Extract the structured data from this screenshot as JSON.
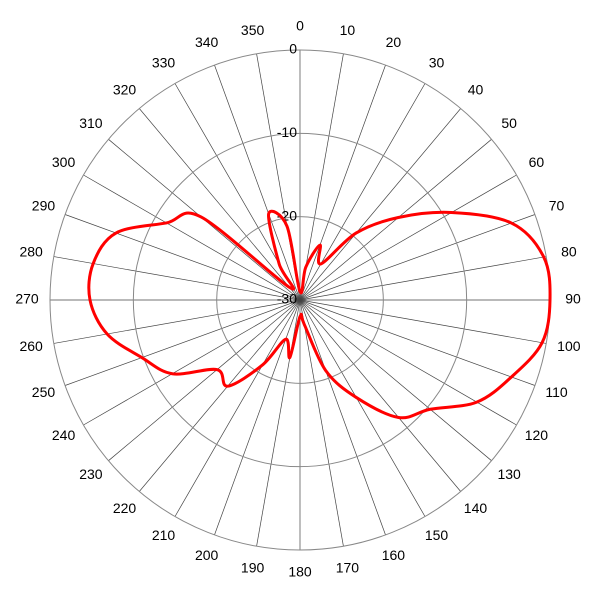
{
  "chart_data": {
    "type": "polar",
    "theta": [
      0,
      10,
      20,
      30,
      40,
      50,
      60,
      70,
      80,
      90,
      100,
      110,
      120,
      130,
      140,
      150,
      160,
      170,
      180,
      190,
      200,
      210,
      220,
      230,
      240,
      250,
      260,
      270,
      280,
      290,
      300,
      310,
      320,
      330,
      340,
      350
    ],
    "series": [
      {
        "color": "#ff0000",
        "values": [
          -29,
          -26,
          -23,
          -25,
          -19.5,
          -14.6,
          -9,
          -3,
          -0.3,
          0,
          -0.5,
          -3,
          -5.5,
          -9.6,
          -11.6,
          -16.5,
          -21,
          -27,
          -28,
          -23,
          -25,
          -21,
          -16.5,
          -17,
          -12.3,
          -9.8,
          -6.5,
          -4.8,
          -4.8,
          -6.5,
          -11.5,
          -14.5,
          -28,
          -25,
          -19,
          -21
        ]
      }
    ],
    "rlim": [
      -30,
      0
    ],
    "rticks": [
      0,
      -10,
      -20,
      -30
    ],
    "thetaticks": [
      0,
      10,
      20,
      30,
      40,
      50,
      60,
      70,
      80,
      90,
      100,
      110,
      120,
      130,
      140,
      150,
      160,
      170,
      180,
      190,
      200,
      210,
      220,
      230,
      240,
      250,
      260,
      270,
      280,
      290,
      300,
      310,
      320,
      330,
      340,
      350
    ]
  }
}
